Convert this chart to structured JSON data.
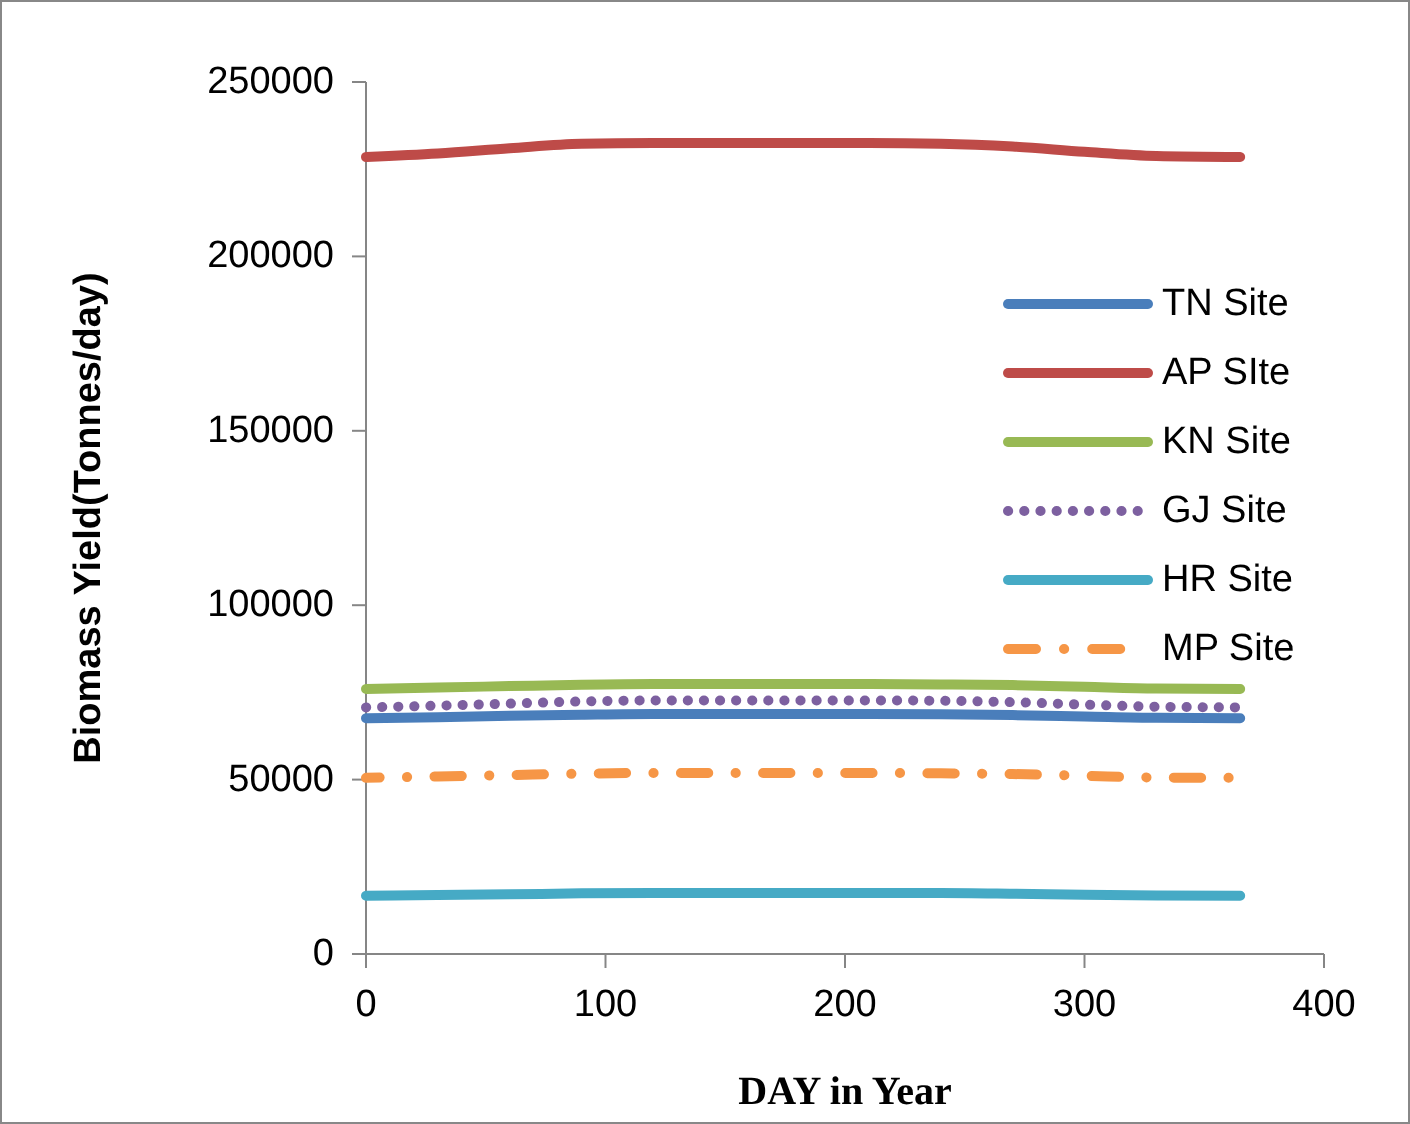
{
  "chart_data": {
    "type": "line",
    "xlabel": "DAY  in Year",
    "ylabel": "Biomass Yield(Tonnes/day)",
    "x": [
      0,
      30,
      60,
      90,
      120,
      150,
      180,
      210,
      240,
      270,
      300,
      330,
      365
    ],
    "xlim": [
      0,
      400
    ],
    "xticks": [
      0,
      100,
      200,
      300,
      400
    ],
    "ylim": [
      0,
      250000
    ],
    "yticks": [
      0,
      50000,
      100000,
      150000,
      200000,
      250000
    ],
    "grid": false,
    "legend": "right",
    "marker": "none",
    "series": [
      {
        "name": "TN Site",
        "color": "#4a7ebb",
        "line_style": "solid",
        "values": [
          67600,
          67900,
          68300,
          68600,
          68800,
          68800,
          68800,
          68800,
          68700,
          68500,
          68100,
          67700,
          67600
        ]
      },
      {
        "name": "AP SIte",
        "color": "#be4b48",
        "line_style": "solid",
        "values": [
          228500,
          229500,
          231000,
          232300,
          232500,
          232500,
          232500,
          232500,
          232300,
          231500,
          230000,
          228800,
          228500
        ]
      },
      {
        "name": "KN Site",
        "color": "#98b954",
        "line_style": "solid",
        "values": [
          76000,
          76400,
          76800,
          77200,
          77400,
          77400,
          77400,
          77400,
          77300,
          77100,
          76600,
          76100,
          76000
        ]
      },
      {
        "name": "GJ Site",
        "color": "#7d60a0",
        "line_style": "dotted",
        "values": [
          70700,
          71200,
          71800,
          72400,
          72700,
          72700,
          72700,
          72700,
          72600,
          72200,
          71500,
          70900,
          70700
        ]
      },
      {
        "name": "HR Site",
        "color": "#46aac5",
        "line_style": "solid",
        "values": [
          16700,
          16900,
          17100,
          17400,
          17500,
          17500,
          17500,
          17500,
          17500,
          17300,
          17000,
          16800,
          16700
        ]
      },
      {
        "name": "MP Site",
        "color": "#f69646",
        "line_style": "dashed",
        "values": [
          50500,
          50900,
          51300,
          51700,
          51900,
          51900,
          51900,
          51900,
          51800,
          51600,
          51100,
          50600,
          50500
        ]
      }
    ]
  }
}
